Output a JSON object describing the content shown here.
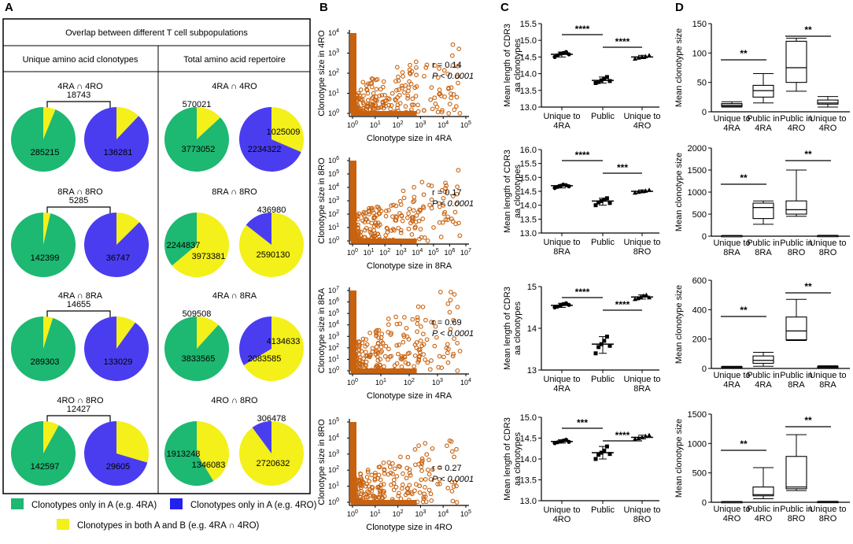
{
  "panel_labels": {
    "a": "A",
    "b": "B",
    "c": "C",
    "d": "D"
  },
  "colors": {
    "green": "#1db871",
    "blue": "#4a3df0",
    "yellow": "#f4f01a",
    "orange": "#c8620f"
  },
  "panel_a": {
    "table_title": "Overlap between different T cell subpopulations",
    "col_unique": "Unique  amino acid  clonotypes",
    "col_total": "Total  amino acid  repertoire",
    "legend": {
      "green": "Clonotypes only in A (e.g. 4RA)",
      "blue": "Clonotypes only in A (e.g. 4RO)",
      "yellow": "Clonotypes in  both A and B (e.g. 4RA ∩ 4RO)"
    }
  },
  "panel_b_text": {
    "stat_r": [
      "r = 0.14",
      "r = 0.17",
      "r = 0.69",
      "r = 0.27"
    ],
    "stat_p": "P < 0.0001"
  },
  "chart_data": [
    {
      "type": "pie",
      "id": "A-unique-4RA-4RO",
      "title": "4RA ∩ 4RO",
      "shared_label": "18743",
      "pies": [
        {
          "label_green": "285215",
          "slices": {
            "green": 285215,
            "yellow": 18743
          }
        },
        {
          "label_blue": "136281",
          "slices": {
            "blue": 136281,
            "yellow": 18743
          }
        }
      ]
    },
    {
      "type": "pie",
      "id": "A-unique-8RA-8RO",
      "title": "8RA ∩ 8RO",
      "shared_label": "5285",
      "pies": [
        {
          "label_green": "142399",
          "slices": {
            "green": 142399,
            "yellow": 5285
          }
        },
        {
          "label_blue": "36747",
          "slices": {
            "blue": 36747,
            "yellow": 5285
          }
        }
      ]
    },
    {
      "type": "pie",
      "id": "A-unique-4RA-8RA",
      "title": "4RA ∩ 8RA",
      "shared_label": "14655",
      "pies": [
        {
          "label_green": "289303",
          "slices": {
            "green": 289303,
            "yellow": 14655
          }
        },
        {
          "label_blue": "133029",
          "slices": {
            "blue": 133029,
            "yellow": 14655
          }
        }
      ]
    },
    {
      "type": "pie",
      "id": "A-unique-4RO-8RO",
      "title": "4RO ∩ 8RO",
      "shared_label": "12427",
      "pies": [
        {
          "label_green": "142597",
          "slices": {
            "green": 142597,
            "yellow": 12427
          }
        },
        {
          "label_blue": "29605",
          "slices": {
            "blue": 29605,
            "yellow": 12427
          }
        }
      ]
    },
    {
      "type": "pie",
      "id": "A-total-4RA-4RO",
      "title": "4RA ∩ 4RO",
      "pies": [
        {
          "label_top": "570021",
          "label_green": "3773052",
          "slices": {
            "green": 3773052,
            "yellow": 570021
          }
        },
        {
          "label_yellow": "1025009",
          "label_blue": "2234322",
          "slices": {
            "blue": 2234322,
            "yellow": 1025009
          }
        }
      ]
    },
    {
      "type": "pie",
      "id": "A-total-8RA-8RO",
      "title": "8RA ∩ 8RO",
      "pies": [
        {
          "label_green": "2244837",
          "label_yellow": "3973381",
          "slices": {
            "green": 2244837,
            "yellow": 3973381
          }
        },
        {
          "label_top": "436980",
          "label_yellow": "2590130",
          "slices": {
            "blue": 436980,
            "yellow": 2590130
          }
        }
      ]
    },
    {
      "type": "pie",
      "id": "A-total-4RA-8RA",
      "title": "4RA ∩ 8RA",
      "pies": [
        {
          "label_top": "509508",
          "label_green": "3833565",
          "slices": {
            "green": 3833565,
            "yellow": 509508
          }
        },
        {
          "label_blue": "2083585",
          "label_yellow": "4134633",
          "slices": {
            "blue": 2083585,
            "yellow": 4134633
          }
        }
      ]
    },
    {
      "type": "pie",
      "id": "A-total-4RO-8RO",
      "title": "4RO ∩ 8RO",
      "pies": [
        {
          "label_green": "1913248",
          "label_yellow": "1346083",
          "slices": {
            "green": 1913248,
            "yellow": 1346083
          }
        },
        {
          "label_top": "306478",
          "label_yellow": "2720632",
          "slices": {
            "blue": 306478,
            "yellow": 2720632
          }
        }
      ]
    },
    {
      "type": "scatter",
      "id": "B1",
      "xlabel": "Clonotype size in 4RA",
      "ylabel": "Clonotype size in 4RO",
      "x_scale": "log10",
      "xlim_exp": [
        0,
        5
      ],
      "ylim_exp": [
        0,
        4
      ],
      "r": 0.14,
      "p": "< 0.0001"
    },
    {
      "type": "scatter",
      "id": "B2",
      "xlabel": "Clonotype size in 8RA",
      "ylabel": "Clonotype size in 8RO",
      "x_scale": "log10",
      "xlim_exp": [
        0,
        7
      ],
      "ylim_exp": [
        0,
        6
      ],
      "r": 0.17,
      "p": "< 0.0001"
    },
    {
      "type": "scatter",
      "id": "B3",
      "xlabel": "Clonotype size in 4RA",
      "ylabel": "Clonotype size in 8RA",
      "x_scale": "log10",
      "xlim_exp": [
        0,
        4
      ],
      "ylim_exp": [
        0,
        7
      ],
      "r": 0.69,
      "p": "< 0.0001"
    },
    {
      "type": "scatter",
      "id": "B4",
      "xlabel": "Clonotype size in 4RO",
      "ylabel": "Clonotype size in 8RO",
      "x_scale": "log10",
      "xlim_exp": [
        0,
        5
      ],
      "ylim_exp": [
        0,
        5
      ],
      "r": 0.27,
      "p": "< 0.0001"
    },
    {
      "type": "dot",
      "id": "C1",
      "ylabel": "Mean length of CDR3 aa clonotypes",
      "categories": [
        "Unique to 4RA",
        "Public",
        "Unique to 4RO"
      ],
      "ylim": [
        13.0,
        15.5
      ],
      "yticks": [
        "13.0",
        "13.5",
        "14.0",
        "14.5",
        "15.0",
        "15.5"
      ],
      "means": [
        14.58,
        13.8,
        14.5
      ],
      "points": [
        [
          14.5,
          14.55,
          14.6,
          14.62,
          14.65,
          14.58
        ],
        [
          13.72,
          13.75,
          13.8,
          13.85,
          13.9,
          13.78
        ],
        [
          14.45,
          14.48,
          14.5,
          14.52,
          14.55
        ]
      ],
      "significance": [
        {
          "between": [
            0,
            1
          ],
          "label": "****"
        },
        {
          "between": [
            1,
            2
          ],
          "label": "****"
        }
      ]
    },
    {
      "type": "dot",
      "id": "C2",
      "ylabel": "Mean length of CDR3 aa clonotypes",
      "categories": [
        "Unique to 8RA",
        "Public",
        "Unique to 8RO"
      ],
      "ylim": [
        13.0,
        16.0
      ],
      "yticks": [
        "13.0",
        "13.5",
        "14.0",
        "14.5",
        "15.0",
        "15.5",
        "16.0"
      ],
      "means": [
        14.7,
        14.15,
        14.5
      ],
      "points": [
        [
          14.62,
          14.66,
          14.7,
          14.74,
          14.72,
          14.68
        ],
        [
          14.0,
          14.1,
          14.15,
          14.2,
          14.25,
          14.08
        ],
        [
          14.45,
          14.48,
          14.5,
          14.52,
          14.55
        ]
      ],
      "significance": [
        {
          "between": [
            0,
            1
          ],
          "label": "****"
        },
        {
          "between": [
            1,
            2
          ],
          "label": "***"
        }
      ]
    },
    {
      "type": "dot",
      "id": "C3",
      "ylabel": "Mean length of CDR3 aa clonotypes",
      "categories": [
        "Unique to 4RA",
        "Public",
        "Unique to 8RA"
      ],
      "ylim": [
        13.0,
        15.0
      ],
      "yticks": [
        "13",
        "14",
        "15"
      ],
      "means": [
        14.55,
        13.62,
        14.75
      ],
      "points": [
        [
          14.5,
          14.52,
          14.55,
          14.58,
          14.6,
          14.56
        ],
        [
          13.4,
          13.55,
          13.62,
          13.7,
          13.8,
          13.58
        ],
        [
          14.7,
          14.72,
          14.75,
          14.78,
          14.8,
          14.74
        ]
      ],
      "significance": [
        {
          "between": [
            0,
            1
          ],
          "label": "****"
        },
        {
          "between": [
            1,
            2
          ],
          "label": "****"
        }
      ]
    },
    {
      "type": "dot",
      "id": "C4",
      "ylabel": "Mean length of CDR3 aa clonotypes",
      "categories": [
        "Unique to 4RO",
        "Public",
        "Unique to 8RO"
      ],
      "ylim": [
        13.0,
        15.0
      ],
      "yticks": [
        "13.0",
        "13.5",
        "14.0",
        "14.5",
        "15.0"
      ],
      "means": [
        14.42,
        14.15,
        14.52
      ],
      "points": [
        [
          14.38,
          14.4,
          14.42,
          14.44,
          14.46,
          14.41
        ],
        [
          14.0,
          14.1,
          14.15,
          14.2,
          14.3,
          14.12
        ],
        [
          14.48,
          14.5,
          14.52,
          14.55,
          14.57
        ]
      ],
      "significance": [
        {
          "between": [
            0,
            1
          ],
          "label": "***"
        },
        {
          "between": [
            1,
            2
          ],
          "label": "****"
        }
      ]
    },
    {
      "type": "box",
      "id": "D1",
      "ylabel": "Mean clonotype size",
      "categories": [
        "Unique to 4RA",
        "Public in 4RA",
        "Public in 4RO",
        "Unique to 4RO"
      ],
      "ylim": [
        0,
        150
      ],
      "yticks": [
        "0",
        "50",
        "100",
        "150"
      ],
      "boxes": [
        [
          8,
          9,
          11,
          14,
          17
        ],
        [
          15,
          25,
          36,
          45,
          65
        ],
        [
          35,
          50,
          75,
          120,
          125
        ],
        [
          8,
          13,
          15,
          20,
          26
        ]
      ],
      "significance": [
        {
          "between": [
            0,
            1
          ],
          "label": "**"
        },
        {
          "between": [
            2,
            3
          ],
          "label": "**"
        }
      ]
    },
    {
      "type": "box",
      "id": "D2",
      "ylabel": "Mean clonotype size",
      "categories": [
        "Unique to 8RA",
        "Public in 8RA",
        "Public in 8RO",
        "Unique to 8RO"
      ],
      "ylim": [
        0,
        2000
      ],
      "yticks": [
        "0",
        "500",
        "1000",
        "1500",
        "2000"
      ],
      "boxes": [
        [
          5,
          8,
          10,
          12,
          15
        ],
        [
          270,
          400,
          650,
          750,
          800
        ],
        [
          450,
          500,
          600,
          800,
          1500
        ],
        [
          8,
          10,
          12,
          14,
          20
        ]
      ],
      "significance": [
        {
          "between": [
            0,
            1
          ],
          "label": "**"
        },
        {
          "between": [
            2,
            3
          ],
          "label": "**"
        }
      ]
    },
    {
      "type": "box",
      "id": "D3",
      "ylabel": "Mean clonotype size",
      "categories": [
        "Unique to 4RA",
        "Public in 4RA",
        "Public in 8RA",
        "Unique to 8RA"
      ],
      "ylim": [
        0,
        600
      ],
      "yticks": [
        "0",
        "200",
        "400",
        "600"
      ],
      "boxes": [
        [
          5,
          8,
          10,
          12,
          15
        ],
        [
          15,
          35,
          55,
          85,
          110
        ],
        [
          190,
          195,
          255,
          350,
          470
        ],
        [
          6,
          10,
          12,
          14,
          18
        ]
      ],
      "significance": [
        {
          "between": [
            0,
            1
          ],
          "label": "**"
        },
        {
          "between": [
            2,
            3
          ],
          "label": "**"
        }
      ]
    },
    {
      "type": "box",
      "id": "D4",
      "ylabel": "Mean clonotype size",
      "categories": [
        "Unique to 4RO",
        "Public in 4RO",
        "Public in 8RO",
        "Unique to 8RO"
      ],
      "ylim": [
        0,
        1500
      ],
      "yticks": [
        "0",
        "500",
        "1000",
        "1500"
      ],
      "boxes": [
        [
          3,
          6,
          8,
          10,
          14
        ],
        [
          60,
          110,
          130,
          260,
          590
        ],
        [
          200,
          230,
          260,
          780,
          1150
        ],
        [
          5,
          8,
          10,
          12,
          16
        ]
      ],
      "significance": [
        {
          "between": [
            0,
            1
          ],
          "label": "**"
        },
        {
          "between": [
            2,
            3
          ],
          "label": "**"
        }
      ]
    }
  ]
}
